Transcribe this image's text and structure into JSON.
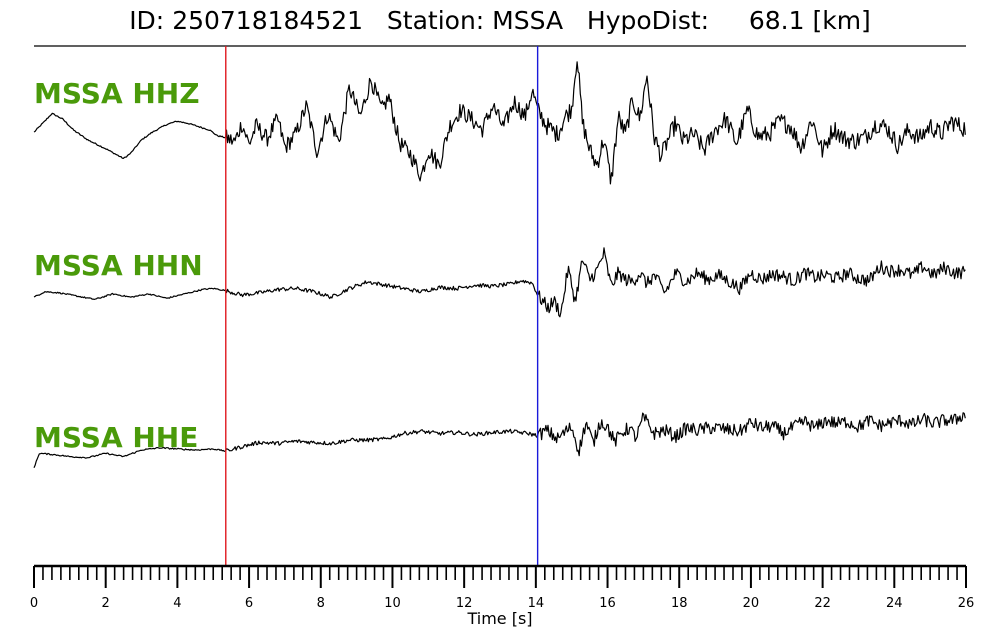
{
  "title": {
    "id_label": "ID:",
    "id_value": "250718184521",
    "station_label": "Station:",
    "station_value": "MSSA",
    "dist_label": "HypoDist:",
    "dist_value": "68.1",
    "dist_unit": "[km]"
  },
  "colors": {
    "trace": "#000000",
    "label": "#4a9a0a",
    "p_pick": "#e0191f",
    "s_pick": "#1a1adb"
  },
  "chart_data": {
    "type": "line",
    "xlabel": "Time [s]",
    "xlim": [
      0,
      26
    ],
    "x_ticks": [
      0,
      2,
      4,
      6,
      8,
      10,
      12,
      14,
      16,
      18,
      20,
      22,
      24,
      26
    ],
    "minor_tick_step": 0.25,
    "picks": [
      {
        "phase": "P",
        "time": 5.35,
        "color": "#e0191f"
      },
      {
        "phase": "S",
        "time": 14.05,
        "color": "#1a1adb"
      }
    ],
    "series": [
      {
        "name": "MSSA HHZ",
        "x": [
          0,
          0.3,
          0.5,
          0.8,
          1.1,
          1.5,
          2.0,
          2.5,
          2.7,
          3.0,
          3.3,
          3.7,
          4.0,
          4.3,
          4.6,
          4.9,
          5.1,
          5.35,
          5.6,
          5.8,
          6.0,
          6.2,
          6.5,
          6.8,
          7.0,
          7.3,
          7.6,
          7.9,
          8.2,
          8.5,
          8.8,
          9.1,
          9.4,
          9.7,
          9.9,
          10.2,
          10.5,
          10.8,
          11.0,
          11.3,
          11.6,
          11.9,
          12.2,
          12.5,
          12.8,
          13.1,
          13.4,
          13.7,
          13.9,
          14.05,
          14.3,
          14.6,
          14.8,
          15.0,
          15.15,
          15.3,
          15.5,
          15.7,
          15.9,
          16.1,
          16.3,
          16.5,
          16.7,
          16.9,
          17.1,
          17.3,
          17.5,
          17.7,
          17.9,
          18.1,
          18.4,
          18.7,
          19.0,
          19.3,
          19.6,
          19.9,
          20.2,
          20.5,
          20.8,
          21.1,
          21.4,
          21.7,
          22.0,
          22.3,
          22.6,
          22.9,
          23.2,
          23.5,
          23.8,
          24.1,
          24.4,
          24.7,
          25.0,
          25.3,
          25.6,
          25.9,
          26.0
        ],
        "y": [
          -0.1,
          0.4,
          0.75,
          0.5,
          0.0,
          -0.45,
          -0.85,
          -1.3,
          -1.05,
          -0.45,
          -0.1,
          0.25,
          0.4,
          0.3,
          0.15,
          0.0,
          -0.25,
          -0.35,
          -0.55,
          0.3,
          -0.65,
          0.2,
          -0.4,
          0.5,
          -0.8,
          -0.2,
          1.1,
          -1.0,
          0.75,
          -0.55,
          1.9,
          0.6,
          2.3,
          0.9,
          1.5,
          -0.6,
          -1.1,
          -2.1,
          -0.9,
          -1.6,
          0.2,
          0.9,
          0.5,
          0.0,
          1.1,
          0.1,
          1.3,
          0.6,
          1.8,
          0.9,
          0.2,
          -0.2,
          0.55,
          1.0,
          3.4,
          0.35,
          -0.9,
          -1.6,
          -0.4,
          -2.35,
          0.6,
          -0.2,
          1.4,
          0.5,
          2.5,
          -0.3,
          -1.2,
          -0.4,
          0.3,
          -0.5,
          -0.2,
          -0.9,
          0.0,
          0.5,
          -0.6,
          0.9,
          -0.3,
          -0.2,
          0.4,
          0.2,
          -0.8,
          0.5,
          -1.0,
          0.1,
          -0.4,
          -0.5,
          -0.3,
          0.3,
          0.1,
          -0.7,
          0.0,
          -0.4,
          0.2,
          -0.2,
          0.4,
          0.1,
          0.1
        ]
      },
      {
        "name": "MSSA HHN",
        "x": [
          0,
          0.3,
          0.7,
          1.2,
          1.7,
          2.2,
          2.7,
          3.2,
          3.7,
          4.2,
          4.7,
          5.0,
          5.35,
          5.8,
          6.3,
          6.8,
          7.3,
          7.8,
          8.3,
          8.8,
          9.3,
          9.8,
          10.3,
          10.8,
          11.3,
          11.8,
          12.3,
          12.8,
          13.3,
          13.6,
          13.9,
          14.05,
          14.2,
          14.35,
          14.5,
          14.7,
          14.9,
          15.1,
          15.3,
          15.5,
          15.7,
          15.9,
          16.1,
          16.3,
          16.5,
          16.7,
          16.9,
          17.1,
          17.3,
          17.6,
          17.9,
          18.2,
          18.5,
          18.8,
          19.1,
          19.4,
          19.7,
          20.0,
          20.3,
          20.6,
          20.9,
          21.2,
          21.5,
          21.8,
          22.1,
          22.4,
          22.7,
          23.0,
          23.3,
          23.6,
          23.9,
          24.2,
          24.5,
          24.8,
          25.1,
          25.4,
          25.7,
          26.0
        ],
        "y": [
          -0.1,
          0.15,
          0.1,
          -0.05,
          -0.2,
          0.05,
          -0.1,
          0.05,
          -0.15,
          0.05,
          0.25,
          0.3,
          0.2,
          0.0,
          0.1,
          0.25,
          0.3,
          0.15,
          -0.1,
          0.3,
          0.6,
          0.45,
          0.3,
          0.15,
          0.35,
          0.3,
          0.45,
          0.4,
          0.5,
          0.65,
          0.55,
          0.0,
          -0.3,
          -0.6,
          -0.25,
          -0.85,
          1.2,
          -0.3,
          1.6,
          0.7,
          1.1,
          1.9,
          0.4,
          1.0,
          0.7,
          0.6,
          1.0,
          0.5,
          0.9,
          0.1,
          1.0,
          0.6,
          1.0,
          0.7,
          0.9,
          0.6,
          0.3,
          1.0,
          0.7,
          0.95,
          0.85,
          0.65,
          1.0,
          0.8,
          0.9,
          0.75,
          1.0,
          0.75,
          0.65,
          1.3,
          1.1,
          1.15,
          0.9,
          1.3,
          0.9,
          1.25,
          1.0,
          1.05
        ]
      },
      {
        "name": "MSSA HHE",
        "x": [
          0,
          0.15,
          0.5,
          1.0,
          1.5,
          2.0,
          2.5,
          3.0,
          3.5,
          4.0,
          4.5,
          5.0,
          5.35,
          5.8,
          6.3,
          6.8,
          7.3,
          7.8,
          8.3,
          8.8,
          9.3,
          9.8,
          10.3,
          10.8,
          11.3,
          11.8,
          12.3,
          12.8,
          13.3,
          13.8,
          14.05,
          14.3,
          14.6,
          14.8,
          15.0,
          15.2,
          15.4,
          15.6,
          15.8,
          16.0,
          16.2,
          16.4,
          16.6,
          16.8,
          17.0,
          17.3,
          17.6,
          17.9,
          18.2,
          18.5,
          18.8,
          19.1,
          19.4,
          19.7,
          20.0,
          20.3,
          20.6,
          20.9,
          21.2,
          21.5,
          21.8,
          22.1,
          22.4,
          22.7,
          23.0,
          23.3,
          23.6,
          23.9,
          24.2,
          24.5,
          24.8,
          25.1,
          25.4,
          25.7,
          25.9,
          26.0
        ],
        "y": [
          -0.8,
          -0.15,
          -0.2,
          -0.3,
          -0.35,
          -0.15,
          -0.3,
          0.0,
          0.1,
          0.05,
          0.0,
          0.05,
          -0.05,
          0.15,
          0.35,
          0.3,
          0.4,
          0.35,
          0.3,
          0.45,
          0.45,
          0.5,
          0.75,
          0.85,
          0.75,
          0.8,
          0.7,
          0.8,
          0.85,
          0.75,
          0.65,
          0.9,
          0.5,
          0.8,
          1.05,
          -0.05,
          1.25,
          0.3,
          1.3,
          1.05,
          0.35,
          0.8,
          1.0,
          0.55,
          1.5,
          0.75,
          0.9,
          0.6,
          1.0,
          0.9,
          1.0,
          1.0,
          0.9,
          0.85,
          1.25,
          1.0,
          1.1,
          0.75,
          1.05,
          1.3,
          1.0,
          1.35,
          1.2,
          1.3,
          1.05,
          1.35,
          1.1,
          1.25,
          1.35,
          1.15,
          1.4,
          1.2,
          1.35,
          1.35,
          1.6,
          1.5
        ]
      }
    ]
  }
}
